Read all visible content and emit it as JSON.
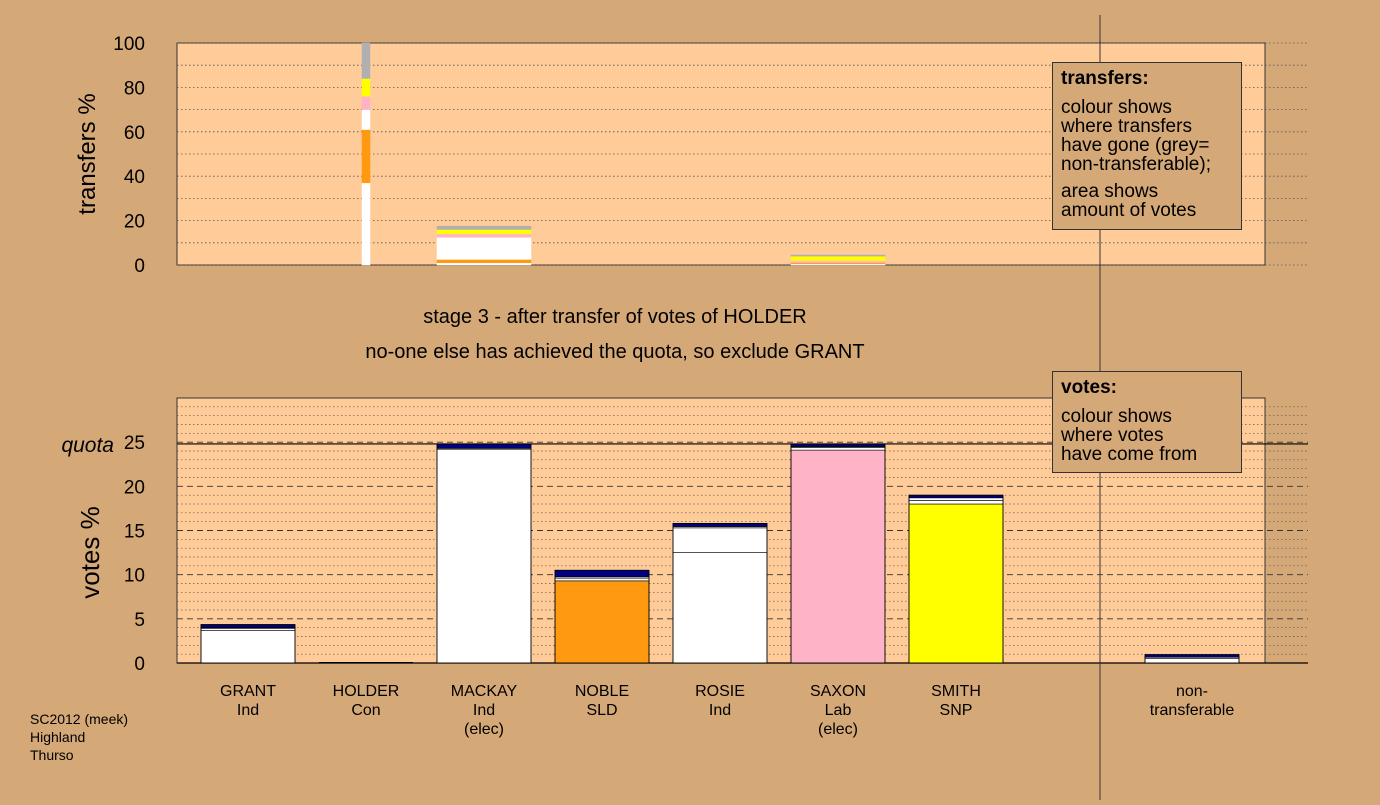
{
  "chart_data": [
    {
      "type": "bar",
      "stacked": true,
      "ylabel": "transfers %",
      "ylim": [
        0,
        100
      ],
      "yticks": [
        0,
        20,
        40,
        60,
        80,
        100
      ],
      "grid": "dotted",
      "categories": [
        "HOLDER",
        "MACKAY",
        "ROSIE",
        "non-transferable"
      ],
      "series_colors": {
        "SMITH": "#ffff00",
        "SAXON": "#ffb3c6",
        "ROSIE": "#ffffff",
        "NOBLE": "#ff9a10",
        "MACKAY": "#ffffff",
        "GRANT": "#ffffff",
        "non-transferable": "#b0b0b0"
      },
      "bars": [
        {
          "category": "HOLDER",
          "stack": [
            {
              "to": "GRANT",
              "value": 37
            },
            {
              "to": "NOBLE",
              "value": 24
            },
            {
              "to": "ROSIE",
              "value": 9
            },
            {
              "to": "SAXON",
              "value": 6
            },
            {
              "to": "SMITH",
              "value": 8
            },
            {
              "to": "non-transferable",
              "value": 16
            }
          ]
        },
        {
          "category": "MACKAY",
          "stack": [
            {
              "to": "GRANT",
              "value": 1
            },
            {
              "to": "NOBLE",
              "value": 1.5
            },
            {
              "to": "ROSIE",
              "value": 10
            },
            {
              "to": "SAXON",
              "value": 1.5
            },
            {
              "to": "SMITH",
              "value": 2
            },
            {
              "to": "non-transferable",
              "value": 1.5
            }
          ]
        },
        {
          "category": "ROSIE",
          "stack": [
            {
              "to": "GRANT",
              "value": 0.5
            },
            {
              "to": "NOBLE",
              "value": 0.5
            },
            {
              "to": "SAXON",
              "value": 1
            },
            {
              "to": "SMITH",
              "value": 2
            },
            {
              "to": "non-transferable",
              "value": 0.5
            }
          ]
        }
      ],
      "legend": {
        "title": "transfers:",
        "lines": [
          "colour shows",
          "where transfers",
          "have gone (grey=",
          "non-transferable);",
          "",
          "area shows",
          "amount of votes"
        ],
        "position": "top-right"
      }
    },
    {
      "type": "bar",
      "stacked": true,
      "ylabel": "votes %",
      "ylim": [
        0,
        30
      ],
      "yticks": [
        0,
        5,
        10,
        15,
        20,
        25
      ],
      "quota": 24.8,
      "quota_label": "quota",
      "grid": "dashed",
      "categories": [
        {
          "name": "GRANT",
          "party": "Ind",
          "note": ""
        },
        {
          "name": "HOLDER",
          "party": "Con",
          "note": ""
        },
        {
          "name": "MACKAY",
          "party": "Ind",
          "note": "(elec)"
        },
        {
          "name": "NOBLE",
          "party": "SLD",
          "note": ""
        },
        {
          "name": "ROSIE",
          "party": "Ind",
          "note": ""
        },
        {
          "name": "SAXON",
          "party": "Lab",
          "note": "(elec)"
        },
        {
          "name": "SMITH",
          "party": "SNP",
          "note": ""
        },
        {
          "name": "",
          "party": "",
          "note": ""
        },
        {
          "name": "non-",
          "party": "transferable",
          "note": ""
        }
      ],
      "bars": [
        {
          "category": "GRANT",
          "stack": [
            {
              "from": "GRANT",
              "color": "#ffffff",
              "value": 3.7
            },
            {
              "from": "MACKAY",
              "color": "#ffffff",
              "value": 0.2
            },
            {
              "from": "transfer",
              "color": "#ffffff",
              "value": 0.1
            },
            {
              "from": "HOLDER",
              "color": "#000080",
              "value": 0.35
            }
          ]
        },
        {
          "category": "HOLDER",
          "stack": []
        },
        {
          "category": "MACKAY",
          "stack": [
            {
              "from": "MACKAY",
              "color": "#ffffff",
              "value": 24.2
            },
            {
              "from": "transfer",
              "color": "#ffffff",
              "value": 0.1
            },
            {
              "from": "HOLDER",
              "color": "#000080",
              "value": 0.5
            }
          ]
        },
        {
          "category": "NOBLE",
          "stack": [
            {
              "from": "NOBLE",
              "color": "#ff9a10",
              "value": 9.3
            },
            {
              "from": "MACKAY",
              "color": "#ffffff",
              "value": 0.3
            },
            {
              "from": "ROSIE",
              "color": "#ffffff",
              "value": 0.15
            },
            {
              "from": "HOLDER",
              "color": "#000080",
              "value": 0.75
            }
          ]
        },
        {
          "category": "ROSIE",
          "stack": [
            {
              "from": "ROSIE",
              "color": "#ffffff",
              "value": 12.5
            },
            {
              "from": "MACKAY",
              "color": "#ffffff",
              "value": 2.8
            },
            {
              "from": "transfer",
              "color": "#ffffff",
              "value": 0.15
            },
            {
              "from": "HOLDER",
              "color": "#000080",
              "value": 0.35
            }
          ]
        },
        {
          "category": "SAXON",
          "stack": [
            {
              "from": "SAXON",
              "color": "#ffb3c6",
              "value": 24.1
            },
            {
              "from": "MACKAY",
              "color": "#ffffff",
              "value": 0.3
            },
            {
              "from": "transfer",
              "color": "#ffffff",
              "value": 0.1
            },
            {
              "from": "HOLDER",
              "color": "#000080",
              "value": 0.3
            }
          ]
        },
        {
          "category": "SMITH",
          "stack": [
            {
              "from": "SMITH",
              "color": "#ffff00",
              "value": 18.0
            },
            {
              "from": "MACKAY",
              "color": "#ffffff",
              "value": 0.4
            },
            {
              "from": "ROSIE",
              "color": "#ffffff",
              "value": 0.3
            },
            {
              "from": "HOLDER",
              "color": "#000080",
              "value": 0.3
            }
          ]
        },
        {
          "category": "",
          "stack": []
        },
        {
          "category": "non-transferable",
          "stack": [
            {
              "from": "MACKAY",
              "color": "#ffffff",
              "value": 0.5
            },
            {
              "from": "transfer",
              "color": "#ffffff",
              "value": 0.15
            },
            {
              "from": "HOLDER",
              "color": "#000080",
              "value": 0.3
            }
          ]
        }
      ],
      "legend": {
        "title": "votes:",
        "lines": [
          "colour shows",
          "where votes",
          "have come from"
        ],
        "position": "top-right"
      }
    }
  ],
  "stage": {
    "line1": "stage 3 - after transfer of votes of HOLDER",
    "line2": "no-one else has achieved the quota, so exclude GRANT"
  },
  "footer": {
    "line1": "SC2012 (meek)",
    "line2": "Highland",
    "line3": "Thurso"
  },
  "colors": {
    "background": "#d5a878",
    "plot": "#ffcc99"
  }
}
